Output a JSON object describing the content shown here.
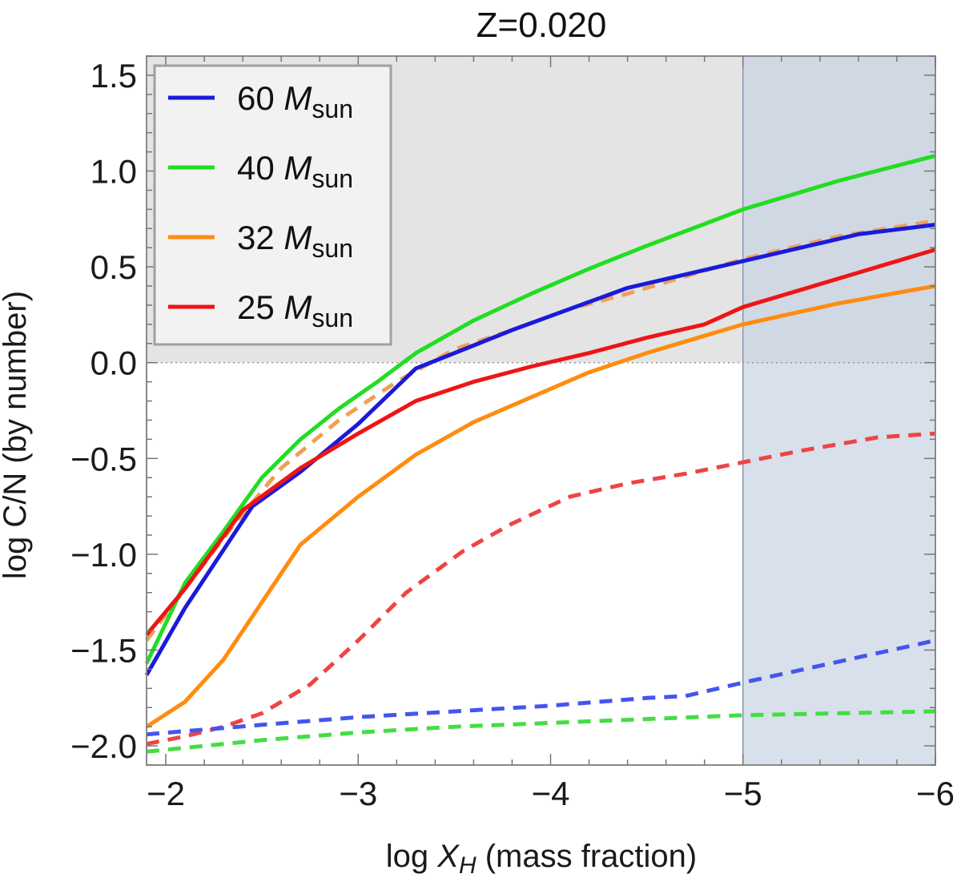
{
  "chart_data": {
    "type": "line",
    "title": "Z=0.020",
    "xlabel": "log X_H (mass fraction)",
    "xlabel_parts": {
      "prefix": "log ",
      "var": "X",
      "sub": "H",
      "suffix": " (mass fraction)"
    },
    "ylabel": "log C/N (by number)",
    "xlim": [
      -1.9,
      -6.0
    ],
    "ylim": [
      -2.1,
      1.6
    ],
    "x_ticks": [
      -2,
      -3,
      -4,
      -5,
      -6
    ],
    "x_tick_labels": [
      "−2",
      "−3",
      "−4",
      "−5",
      "−6"
    ],
    "y_ticks": [
      -2.0,
      -1.5,
      -1.0,
      -0.5,
      0.0,
      0.5,
      1.0,
      1.5
    ],
    "y_tick_labels": [
      "−2.0",
      "−1.5",
      "−1.0",
      "−0.5",
      "0.0",
      "0.5",
      "1.0",
      "1.5"
    ],
    "shaded_regions": [
      {
        "name": "upper-gray-region",
        "x_range": [
          -1.9,
          -6.0
        ],
        "y_range": [
          0.0,
          1.6
        ],
        "color": "#d9d9d9"
      },
      {
        "name": "right-blue-region",
        "x_range": [
          -5.0,
          -6.0
        ],
        "y_range": [
          -2.1,
          1.6
        ],
        "color": "#c7d3e3"
      }
    ],
    "reference_lines": [
      {
        "name": "y-zero-dotted-line",
        "y": 0.0
      }
    ],
    "legend": {
      "position": "top-left",
      "entries": [
        {
          "label": "60",
          "unit_var": "M",
          "unit_sub": "sun",
          "color": "#1a1adb"
        },
        {
          "label": "40",
          "unit_var": "M",
          "unit_sub": "sun",
          "color": "#22dd22"
        },
        {
          "label": "32",
          "unit_var": "M",
          "unit_sub": "sun",
          "color": "#ff8c10"
        },
        {
          "label": "25",
          "unit_var": "M",
          "unit_sub": "sun",
          "color": "#ee1515"
        }
      ]
    },
    "series": [
      {
        "name": "60 Msun solid",
        "color": "#1a1adb",
        "style": "solid",
        "x": [
          -1.9,
          -2.1,
          -2.45,
          -2.7,
          -3.0,
          -3.3,
          -3.55,
          -3.8,
          -4.1,
          -4.4,
          -4.7,
          -5.0,
          -5.3,
          -5.6,
          -6.0
        ],
        "y": [
          -1.63,
          -1.28,
          -0.75,
          -0.57,
          -0.32,
          -0.03,
          0.07,
          0.17,
          0.28,
          0.39,
          0.46,
          0.53,
          0.6,
          0.67,
          0.72
        ]
      },
      {
        "name": "40 Msun solid",
        "color": "#22dd22",
        "style": "solid",
        "x": [
          -1.9,
          -2.1,
          -2.3,
          -2.5,
          -2.7,
          -2.9,
          -3.1,
          -3.3,
          -3.6,
          -3.9,
          -4.2,
          -4.5,
          -5.0,
          -5.5,
          -6.0
        ],
        "y": [
          -1.57,
          -1.15,
          -0.88,
          -0.6,
          -0.4,
          -0.24,
          -0.1,
          0.05,
          0.22,
          0.36,
          0.49,
          0.61,
          0.8,
          0.95,
          1.08
        ]
      },
      {
        "name": "32 Msun solid",
        "color": "#ff8c10",
        "style": "solid",
        "x": [
          -1.9,
          -2.1,
          -2.3,
          -2.5,
          -2.7,
          -3.0,
          -3.3,
          -3.6,
          -3.9,
          -4.2,
          -4.5,
          -4.8,
          -5.0,
          -5.5,
          -6.0
        ],
        "y": [
          -1.9,
          -1.77,
          -1.55,
          -1.25,
          -0.95,
          -0.7,
          -0.48,
          -0.31,
          -0.18,
          -0.05,
          0.05,
          0.14,
          0.2,
          0.31,
          0.4
        ]
      },
      {
        "name": "25 Msun solid",
        "color": "#ee1515",
        "style": "solid",
        "x": [
          -1.9,
          -2.1,
          -2.4,
          -2.7,
          -3.0,
          -3.3,
          -3.6,
          -3.9,
          -4.2,
          -4.5,
          -4.8,
          -5.0,
          -5.5,
          -6.0
        ],
        "y": [
          -1.42,
          -1.18,
          -0.77,
          -0.55,
          -0.37,
          -0.2,
          -0.1,
          -0.02,
          0.05,
          0.13,
          0.2,
          0.29,
          0.44,
          0.59
        ]
      },
      {
        "name": "32 Msun dashed",
        "color": "#f0a055",
        "style": "dashed",
        "x": [
          -1.9,
          -2.1,
          -2.35,
          -2.6,
          -2.9,
          -3.2,
          -3.5,
          -3.8,
          -4.1,
          -4.4,
          -4.7,
          -5.0,
          -5.5,
          -6.0
        ],
        "y": [
          -1.45,
          -1.18,
          -0.85,
          -0.55,
          -0.3,
          -0.1,
          0.07,
          0.17,
          0.28,
          0.36,
          0.45,
          0.54,
          0.66,
          0.74
        ]
      },
      {
        "name": "25 Msun dashed",
        "color": "#ee4444",
        "style": "dashed",
        "x": [
          -1.9,
          -2.1,
          -2.3,
          -2.5,
          -2.75,
          -3.0,
          -3.25,
          -3.55,
          -3.8,
          -4.1,
          -4.4,
          -4.7,
          -5.0,
          -5.3,
          -5.7,
          -6.0
        ],
        "y": [
          -1.99,
          -1.95,
          -1.9,
          -1.83,
          -1.68,
          -1.45,
          -1.2,
          -0.98,
          -0.84,
          -0.7,
          -0.63,
          -0.58,
          -0.52,
          -0.46,
          -0.39,
          -0.37
        ]
      },
      {
        "name": "60 Msun dashed",
        "color": "#4455ee",
        "style": "dashed",
        "x": [
          -1.9,
          -2.5,
          -3.0,
          -3.5,
          -4.0,
          -4.5,
          -4.7,
          -5.0,
          -5.5,
          -6.0
        ],
        "y": [
          -1.94,
          -1.89,
          -1.85,
          -1.82,
          -1.79,
          -1.75,
          -1.74,
          -1.67,
          -1.56,
          -1.45
        ]
      },
      {
        "name": "40 Msun dashed",
        "color": "#44dd44",
        "style": "dashed",
        "x": [
          -1.9,
          -2.5,
          -3.0,
          -3.5,
          -4.0,
          -4.5,
          -5.0,
          -5.5,
          -6.0
        ],
        "y": [
          -2.03,
          -1.97,
          -1.93,
          -1.9,
          -1.88,
          -1.86,
          -1.84,
          -1.83,
          -1.82
        ]
      }
    ]
  }
}
